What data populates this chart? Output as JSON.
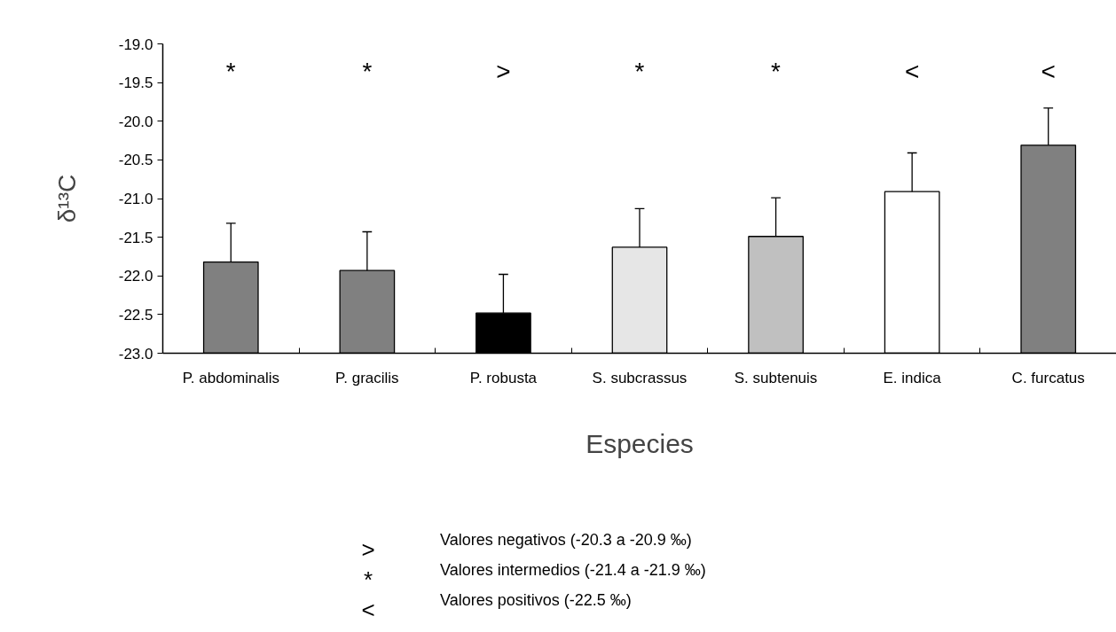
{
  "chart_data": {
    "type": "bar",
    "xlabel": "Especies",
    "ylabel": "δ¹³C",
    "categories": [
      "P. abdominalis",
      "P. gracilis",
      "P. robusta",
      "S. subcrassus",
      "S. subtenuis",
      "E. indica",
      "C. furcatus"
    ],
    "base": [
      -23.0,
      -23.0,
      -23.0,
      -23.0,
      -23.0,
      -23.0,
      -23.0
    ],
    "values": [
      1.18,
      1.07,
      0.52,
      1.37,
      1.51,
      2.09,
      2.69
    ],
    "errors": [
      [
        -21.82,
        -21.32
      ],
      [
        -21.93,
        -21.43
      ],
      [
        -22.48,
        -21.98
      ],
      [
        -21.63,
        -21.13
      ],
      [
        -21.49,
        -20.99
      ],
      [
        -20.91,
        -20.41
      ],
      [
        -20.31,
        -19.83
      ]
    ],
    "colors": [
      "#808080",
      "#808080",
      "#000000",
      "#e6e6e6",
      "#c0c0c0",
      "#ffffff",
      "#808080"
    ],
    "ylim": [
      -23.0,
      -19.0
    ],
    "yticks": [
      {
        "value": -23.0,
        "label": "-23.0"
      },
      {
        "value": -22.5,
        "label": "-22.5"
      },
      {
        "value": -22.0,
        "label": "-22.0"
      },
      {
        "value": -21.5,
        "label": "-21.5"
      },
      {
        "value": -21.0,
        "label": "-21.0"
      },
      {
        "value": -20.5,
        "label": "-20.5"
      },
      {
        "value": -20.0,
        "label": "-20.0"
      },
      {
        "value": -19.5,
        "label": "-19.5"
      },
      {
        "value": -19.0,
        "label": "-19.0"
      }
    ],
    "grid": false,
    "annotations": [
      "*",
      "*",
      ">",
      "*",
      "*",
      "<",
      "<",
      ">  Valores negativos (-20.3 a -20.9 ‰)",
      "*  Valores intermedios (-21.4 a -21.9 ‰)",
      "<  Valores positivos (-22.5 ‰)"
    ]
  }
}
